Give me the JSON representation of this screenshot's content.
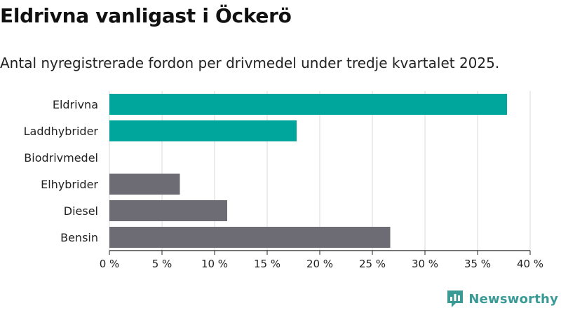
{
  "header": {
    "title": "Eldrivna vanligast i Öckerö",
    "subtitle": "Antal nyregistrerade fordon per drivmedel under tredje kvartalet 2025."
  },
  "brand": {
    "name": "Newsworthy",
    "color": "#3a9a95"
  },
  "colors": {
    "highlight": "#00a59c",
    "other": "#6d6c74",
    "grid": "#d9d9d9",
    "axis": "#222222"
  },
  "chart_data": {
    "type": "bar",
    "orientation": "horizontal",
    "categories": [
      "Eldrivna",
      "Laddhybrider",
      "Biodrivmedel",
      "Elhybrider",
      "Diesel",
      "Bensin"
    ],
    "values": [
      37.8,
      17.8,
      0,
      6.7,
      11.2,
      26.7
    ],
    "highlight": [
      true,
      true,
      false,
      false,
      false,
      false
    ],
    "xlim": [
      0,
      40
    ],
    "xticks": [
      0,
      5,
      10,
      15,
      20,
      25,
      30,
      35,
      40
    ],
    "tick_labels": [
      "0 %",
      "5 %",
      "10 %",
      "15 %",
      "20 %",
      "25 %",
      "30 %",
      "35 %",
      "40 %"
    ],
    "grid": true
  }
}
